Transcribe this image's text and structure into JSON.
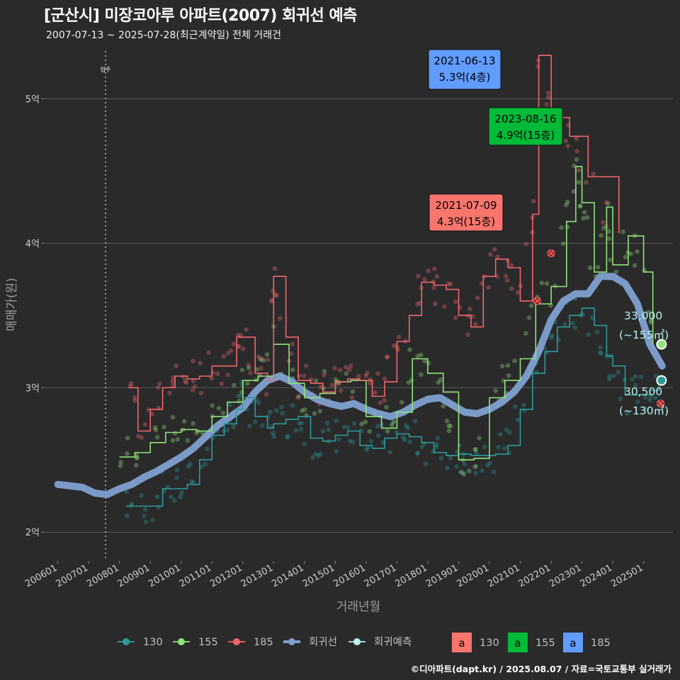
{
  "title": "[군산시] 미장코아루 아파트(2007) 회귀선 예측",
  "subtitle": "2007-07-13 ~ 2025-07-28(최근계약일) 전체 거래건",
  "source": "©디아파트(dapt.kr) / 2025.08.07 / 자료=국토교통부 실거래가",
  "colors": {
    "s130": "#2c9c9b",
    "s155": "#8fe37a",
    "s185": "#f2666a",
    "trend": "#7fa0d0",
    "pred": "#b9f2ee",
    "box130": "#f8766d",
    "box155": "#00ba38",
    "box185": "#619cff"
  },
  "chart_data": {
    "type": "line",
    "xlabel": "거래년월",
    "ylabel": "매매가(원)",
    "x_ticks": [
      "200601",
      "200701",
      "200801",
      "200901",
      "201001",
      "201101",
      "201201",
      "201301",
      "201401",
      "201501",
      "201601",
      "201701",
      "201801",
      "201901",
      "202001",
      "202101",
      "202201",
      "202301",
      "202401",
      "202501"
    ],
    "y_ticks": [
      "2억",
      "3억",
      "4억",
      "5억"
    ],
    "ylim": [
      18000,
      53500
    ],
    "xlim": [
      2005.55,
      2025.95
    ],
    "move_in": {
      "x": 2007.55,
      "label": "입주"
    },
    "series": [
      {
        "name": "130",
        "key": "s130",
        "x": [
          2008.2,
          2008.6,
          2009.0,
          2009.4,
          2009.8,
          2010.2,
          2010.6,
          2011.0,
          2011.4,
          2011.8,
          2012.0,
          2012.4,
          2012.8,
          2013.0,
          2013.4,
          2013.8,
          2014.2,
          2014.6,
          2015.0,
          2015.4,
          2015.8,
          2016.2,
          2016.6,
          2017.0,
          2017.4,
          2017.8,
          2018.2,
          2018.6,
          2019.0,
          2019.4,
          2019.8,
          2020.2,
          2020.6,
          2021.0,
          2021.4,
          2021.8,
          2022.2,
          2022.6,
          2023.0,
          2023.4,
          2023.8,
          2024.0,
          2024.4,
          2024.8,
          2025.2,
          2025.5
        ],
        "values": [
          21800,
          21800,
          21800,
          23000,
          23000,
          23300,
          25000,
          26700,
          27500,
          28500,
          29300,
          28000,
          27200,
          27500,
          27800,
          28000,
          26500,
          26300,
          26700,
          27000,
          26000,
          25800,
          26500,
          26800,
          26600,
          26200,
          25500,
          25300,
          25400,
          25300,
          25300,
          25400,
          26000,
          28500,
          31000,
          32500,
          34200,
          35000,
          35500,
          34300,
          32200,
          31500,
          29500,
          29500,
          29800,
          30500
        ]
      },
      {
        "name": "155",
        "key": "s155",
        "x": [
          2008.0,
          2008.5,
          2009.0,
          2009.5,
          2010.0,
          2010.5,
          2011.0,
          2011.5,
          2012.0,
          2012.5,
          2013.0,
          2013.5,
          2014.0,
          2014.5,
          2015.0,
          2015.5,
          2016.0,
          2016.5,
          2017.0,
          2017.5,
          2018.0,
          2018.5,
          2019.0,
          2019.5,
          2020.0,
          2020.5,
          2021.0,
          2021.5,
          2022.0,
          2022.5,
          2022.8,
          2023.0,
          2023.4,
          2023.8,
          2024.0,
          2024.5,
          2025.0,
          2025.3
        ],
        "values": [
          25200,
          25500,
          26200,
          26900,
          27100,
          27000,
          28000,
          29000,
          30500,
          30800,
          33000,
          30300,
          29300,
          29600,
          30400,
          30500,
          28000,
          27200,
          28300,
          32000,
          31000,
          29700,
          25000,
          25100,
          29300,
          30500,
          32000,
          35800,
          37000,
          41500,
          45300,
          42800,
          38000,
          42500,
          38500,
          40500,
          38000,
          33000
        ]
      },
      {
        "name": "185",
        "key": "s185",
        "x": [
          2008.3,
          2008.6,
          2009.0,
          2009.4,
          2009.8,
          2010.2,
          2010.6,
          2011.0,
          2011.4,
          2011.8,
          2012.0,
          2012.4,
          2012.8,
          2013.0,
          2013.4,
          2013.8,
          2014.2,
          2014.6,
          2015.0,
          2015.4,
          2015.8,
          2016.2,
          2016.6,
          2017.0,
          2017.4,
          2017.8,
          2018.2,
          2018.6,
          2019.0,
          2019.4,
          2019.8,
          2020.2,
          2020.6,
          2021.0,
          2021.4,
          2021.6,
          2022.0,
          2022.6,
          2023.2,
          2024.2
        ],
        "values": [
          30000,
          27000,
          28500,
          30000,
          30800,
          30600,
          30800,
          31500,
          31500,
          33500,
          33500,
          31000,
          30500,
          37700,
          33500,
          30500,
          30300,
          29700,
          30400,
          30600,
          30500,
          29400,
          30400,
          33200,
          35000,
          37300,
          37100,
          36800,
          35000,
          34200,
          37700,
          38900,
          38300,
          36000,
          42000,
          53000,
          48700,
          47400,
          44600,
          40700
        ]
      }
    ],
    "trend": {
      "name": "회귀선",
      "x": [
        2006.0,
        2006.4,
        2006.8,
        2007.2,
        2007.6,
        2008.0,
        2008.4,
        2008.8,
        2009.2,
        2009.6,
        2010.0,
        2010.4,
        2010.8,
        2011.2,
        2011.6,
        2012.0,
        2012.4,
        2012.8,
        2013.2,
        2013.6,
        2014.0,
        2014.4,
        2014.8,
        2015.2,
        2015.6,
        2016.0,
        2016.4,
        2016.8,
        2017.2,
        2017.6,
        2018.0,
        2018.4,
        2018.8,
        2019.2,
        2019.6,
        2020.0,
        2020.4,
        2020.8,
        2021.2,
        2021.6,
        2022.0,
        2022.4,
        2022.8,
        2023.2,
        2023.6,
        2024.0,
        2024.4,
        2024.8,
        2025.2,
        2025.6
      ],
      "values": [
        23300,
        23200,
        23100,
        22700,
        22600,
        23000,
        23300,
        23800,
        24200,
        24700,
        25200,
        25800,
        26600,
        27400,
        28000,
        28600,
        29700,
        30500,
        30800,
        30400,
        29700,
        29200,
        28900,
        28700,
        28900,
        28500,
        28200,
        28000,
        28300,
        28800,
        29200,
        29300,
        28800,
        28300,
        28200,
        28500,
        29000,
        29700,
        30800,
        32500,
        34700,
        36000,
        36500,
        36500,
        37700,
        37700,
        37200,
        35800,
        33000,
        31500
      ]
    },
    "predictions": [
      {
        "name": "회귀예측",
        "series": "155",
        "x": 2025.58,
        "value": 33000,
        "label": "33,000",
        "sublabel": "(~155㎡)"
      },
      {
        "name": "회귀예측",
        "series": "130",
        "x": 2025.58,
        "value": 30500,
        "label": "30,500",
        "sublabel": "(~130㎡)"
      }
    ],
    "annotations": [
      {
        "series": "185",
        "date": "2021-06-13",
        "text": "5.3억(4층)",
        "color_key": "box185"
      },
      {
        "series": "155",
        "date": "2023-08-16",
        "text": "4.9억(15층)",
        "color_key": "box155"
      },
      {
        "series": "130",
        "date": "2021-07-09",
        "text": "4.3억(15층)",
        "color_key": "box130"
      }
    ],
    "legend": {
      "lines": [
        {
          "label": "130",
          "key": "s130"
        },
        {
          "label": "155",
          "key": "s155"
        },
        {
          "label": "185",
          "key": "s185"
        },
        {
          "label": "회귀선",
          "key": "trend"
        },
        {
          "label": "회귀예측",
          "key": "pred"
        }
      ],
      "boxes": [
        {
          "label": "130",
          "key": "box130",
          "glyph": "a"
        },
        {
          "label": "155",
          "key": "box155",
          "glyph": "a"
        },
        {
          "label": "185",
          "key": "box185",
          "glyph": "a"
        }
      ],
      "position": "bottom"
    }
  }
}
